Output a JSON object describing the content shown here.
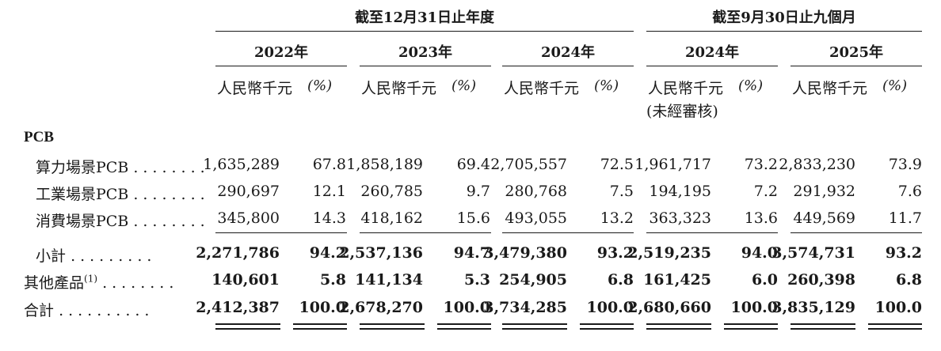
{
  "headers": {
    "group1": "截至12月31日止年度",
    "group2": "截至9月30日止九個月",
    "years": [
      "2022年",
      "2023年",
      "2024年",
      "2024年",
      "2025年"
    ],
    "unit": "人民幣千元",
    "pct": "(%)",
    "unaudited": "(未經審核)"
  },
  "section_label": "PCB",
  "rows": [
    {
      "label": "算力場景PCB",
      "dots": "........",
      "values": [
        "1,635,289",
        "67.8",
        "1,858,189",
        "69.4",
        "2,705,557",
        "72.5",
        "1,961,717",
        "73.2",
        "2,833,230",
        "73.9"
      ]
    },
    {
      "label": "工業場景PCB",
      "dots": "........",
      "values": [
        "290,697",
        "12.1",
        "260,785",
        "9.7",
        "280,768",
        "7.5",
        "194,195",
        "7.2",
        "291,932",
        "7.6"
      ]
    },
    {
      "label": "消費場景PCB",
      "dots": "........",
      "values": [
        "345,800",
        "14.3",
        "418,162",
        "15.6",
        "493,055",
        "13.2",
        "363,323",
        "13.6",
        "449,569",
        "11.7"
      ]
    }
  ],
  "subtotal": {
    "label": "小計",
    "dots": ".........",
    "values": [
      "2,271,786",
      "94.2",
      "2,537,136",
      "94.7",
      "3,479,380",
      "93.2",
      "2,519,235",
      "94.0",
      "3,574,731",
      "93.2"
    ]
  },
  "other": {
    "label": "其他產品",
    "note": "(1)",
    "dots": "........",
    "values": [
      "140,601",
      "5.8",
      "141,134",
      "5.3",
      "254,905",
      "6.8",
      "161,425",
      "6.0",
      "260,398",
      "6.8"
    ]
  },
  "total": {
    "label": "合計",
    "dots": "..........",
    "values": [
      "2,412,387",
      "100.0",
      "2,678,270",
      "100.0",
      "3,734,285",
      "100.0",
      "2,680,660",
      "100.0",
      "3,835,129",
      "100.0"
    ]
  }
}
